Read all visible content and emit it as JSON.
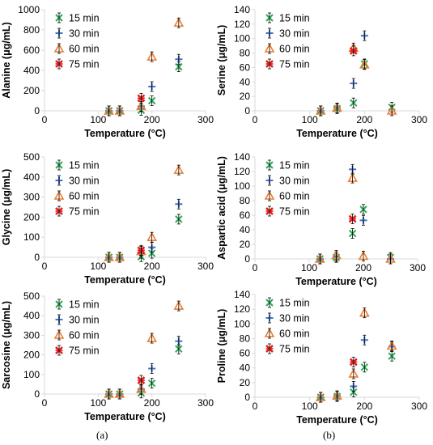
{
  "colors": {
    "15 min": "#2eab5a",
    "30 min": "#4472c4",
    "60 min": "#ed7d31",
    "75 min": "#e02020",
    "axis": "#d9d9d9",
    "text": "#000000",
    "errorbar": "#000000"
  },
  "markers": {
    "15 min": "x-mark",
    "30 min": "plus-mark",
    "60 min": "triangle-mark",
    "75 min": "star-x-mark"
  },
  "figure_labels": {
    "a": "(a)",
    "b": "(b)"
  },
  "chart_data": [
    {
      "type": "scatter",
      "xlabel": "Temperature (°C)",
      "ylabel": "Alanine (μg/mL)",
      "xlim": [
        0,
        300
      ],
      "xticks": [
        0,
        100,
        200,
        300
      ],
      "ylim": [
        0,
        1000
      ],
      "yticks": [
        0,
        200,
        400,
        600,
        800,
        1000
      ],
      "legend": "top-left",
      "series": [
        {
          "name": "15 min",
          "points": [
            [
              120,
              0
            ],
            [
              140,
              0
            ],
            [
              180,
              5
            ],
            [
              200,
              100
            ],
            [
              250,
              435
            ]
          ]
        },
        {
          "name": "30 min",
          "points": [
            [
              120,
              0
            ],
            [
              140,
              0
            ],
            [
              180,
              45
            ],
            [
              200,
              240
            ],
            [
              250,
              510
            ]
          ]
        },
        {
          "name": "60 min",
          "points": [
            [
              120,
              0
            ],
            [
              140,
              0
            ],
            [
              180,
              45
            ],
            [
              200,
              535
            ],
            [
              250,
              870
            ]
          ]
        },
        {
          "name": "75 min",
          "points": [
            [
              180,
              125
            ]
          ]
        }
      ]
    },
    {
      "type": "scatter",
      "xlabel": "Temperature (°C)",
      "ylabel": "Serine (μg/mL)",
      "xlim": [
        0,
        300
      ],
      "xticks": [
        0,
        100,
        200,
        300
      ],
      "ylim": [
        0,
        140
      ],
      "yticks": [
        0,
        20,
        40,
        60,
        80,
        100,
        120,
        140
      ],
      "legend": "top-left",
      "series": [
        {
          "name": "15 min",
          "points": [
            [
              120,
              0
            ],
            [
              150,
              3
            ],
            [
              180,
              11
            ],
            [
              200,
              65
            ],
            [
              250,
              5
            ]
          ]
        },
        {
          "name": "30 min",
          "points": [
            [
              120,
              0
            ],
            [
              150,
              4
            ],
            [
              180,
              38
            ],
            [
              200,
              104
            ]
          ]
        },
        {
          "name": "60 min",
          "points": [
            [
              120,
              0
            ],
            [
              150,
              4
            ],
            [
              180,
              87
            ],
            [
              200,
              64
            ],
            [
              250,
              0
            ]
          ]
        },
        {
          "name": "75 min",
          "points": [
            [
              180,
              83
            ]
          ]
        }
      ]
    },
    {
      "type": "scatter",
      "xlabel": "Temperature (°C)",
      "ylabel": "Glycine (μg/mL)",
      "xlim": [
        0,
        300
      ],
      "xticks": [
        0,
        100,
        200,
        300
      ],
      "ylim": [
        0,
        500
      ],
      "yticks": [
        0,
        100,
        200,
        300,
        400,
        500
      ],
      "legend": "top-left",
      "series": [
        {
          "name": "15 min",
          "points": [
            [
              120,
              0
            ],
            [
              140,
              0
            ],
            [
              180,
              3
            ],
            [
              200,
              20
            ],
            [
              250,
              190
            ]
          ]
        },
        {
          "name": "30 min",
          "points": [
            [
              120,
              0
            ],
            [
              140,
              0
            ],
            [
              180,
              20
            ],
            [
              200,
              50
            ],
            [
              250,
              265
            ]
          ]
        },
        {
          "name": "60 min",
          "points": [
            [
              120,
              0
            ],
            [
              140,
              0
            ],
            [
              180,
              30
            ],
            [
              200,
              100
            ],
            [
              250,
              435
            ]
          ]
        },
        {
          "name": "75 min",
          "points": [
            [
              180,
              35
            ]
          ]
        }
      ]
    },
    {
      "type": "scatter",
      "xlabel": "Temperature (°C)",
      "ylabel": "Aspartic acid (μg/mL)",
      "xlim": [
        0,
        300
      ],
      "xticks": [
        0,
        100,
        200,
        300
      ],
      "ylim": [
        0,
        140
      ],
      "yticks": [
        0,
        20,
        40,
        60,
        80,
        100,
        120,
        140
      ],
      "legend": "top-left",
      "series": [
        {
          "name": "15 min",
          "points": [
            [
              120,
              0
            ],
            [
              150,
              2
            ],
            [
              180,
              35
            ],
            [
              200,
              68
            ],
            [
              250,
              2
            ]
          ]
        },
        {
          "name": "30 min",
          "points": [
            [
              120,
              0
            ],
            [
              150,
              3
            ],
            [
              180,
              123
            ],
            [
              200,
              53
            ],
            [
              250,
              0
            ]
          ]
        },
        {
          "name": "60 min",
          "points": [
            [
              120,
              0
            ],
            [
              150,
              5
            ],
            [
              180,
              111
            ],
            [
              200,
              4
            ],
            [
              250,
              0
            ]
          ]
        },
        {
          "name": "75 min",
          "points": [
            [
              180,
              55
            ]
          ]
        }
      ]
    },
    {
      "type": "scatter",
      "xlabel": "Temperature (°C)",
      "ylabel": "Sarcosine (μg/mL)",
      "xlim": [
        0,
        300
      ],
      "xticks": [
        0,
        100,
        200,
        300
      ],
      "ylim": [
        0,
        500
      ],
      "yticks": [
        0,
        100,
        200,
        300,
        400,
        500
      ],
      "legend": "top-left",
      "series": [
        {
          "name": "15 min",
          "points": [
            [
              120,
              0
            ],
            [
              140,
              0
            ],
            [
              180,
              5
            ],
            [
              200,
              55
            ],
            [
              250,
              230
            ]
          ]
        },
        {
          "name": "30 min",
          "points": [
            [
              120,
              0
            ],
            [
              140,
              0
            ],
            [
              180,
              25
            ],
            [
              200,
              130
            ],
            [
              250,
              270
            ]
          ]
        },
        {
          "name": "60 min",
          "points": [
            [
              120,
              0
            ],
            [
              140,
              0
            ],
            [
              180,
              25
            ],
            [
              200,
              285
            ],
            [
              250,
              450
            ]
          ]
        },
        {
          "name": "75 min",
          "points": [
            [
              180,
              70
            ]
          ]
        }
      ]
    },
    {
      "type": "scatter",
      "xlabel": "Temperature (°C)",
      "ylabel": "Proline (μg/mL)",
      "xlim": [
        0,
        300
      ],
      "xticks": [
        0,
        100,
        200,
        300
      ],
      "ylim": [
        0,
        140
      ],
      "yticks": [
        0,
        20,
        40,
        60,
        80,
        100,
        120,
        140
      ],
      "legend": "top-left",
      "series": [
        {
          "name": "15 min",
          "points": [
            [
              120,
              0
            ],
            [
              150,
              1
            ],
            [
              180,
              7
            ],
            [
              200,
              41
            ],
            [
              250,
              56
            ]
          ]
        },
        {
          "name": "30 min",
          "points": [
            [
              120,
              0
            ],
            [
              150,
              2
            ],
            [
              180,
              15
            ],
            [
              200,
              78
            ],
            [
              250,
              69
            ]
          ]
        },
        {
          "name": "60 min",
          "points": [
            [
              120,
              0
            ],
            [
              150,
              2
            ],
            [
              180,
              32
            ],
            [
              200,
              115
            ],
            [
              250,
              70
            ]
          ]
        },
        {
          "name": "75 min",
          "points": [
            [
              180,
              48
            ]
          ]
        }
      ]
    }
  ]
}
